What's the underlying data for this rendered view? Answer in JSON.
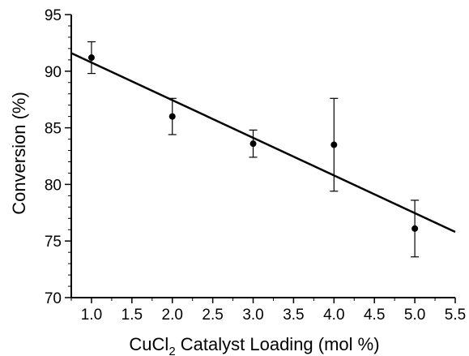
{
  "chart_data": {
    "type": "scatter",
    "xlabel": "CuCl",
    "xlabel_subscript": "2",
    "xlabel_rest": " Catalyst Loading (mol %)",
    "ylabel": "Conversion (%)",
    "xlim": [
      0.75,
      5.5
    ],
    "ylim": [
      70,
      95
    ],
    "x_ticks": [
      "1.0",
      "1.5",
      "2.0",
      "2.5",
      "3.0",
      "3.5",
      "4.0",
      "4.5",
      "5.0",
      "5.5"
    ],
    "x_tick_values": [
      1.0,
      1.5,
      2.0,
      2.5,
      3.0,
      3.5,
      4.0,
      4.5,
      5.0,
      5.5
    ],
    "y_ticks": [
      "70",
      "75",
      "80",
      "85",
      "90",
      "95"
    ],
    "y_tick_values": [
      70,
      75,
      80,
      85,
      90,
      95
    ],
    "grid": false,
    "series": [
      {
        "points": [
          {
            "x": 1.0,
            "y": 91.2,
            "err_low": 89.8,
            "err_high": 92.6
          },
          {
            "x": 2.0,
            "y": 86.0,
            "err_low": 84.4,
            "err_high": 87.6
          },
          {
            "x": 3.0,
            "y": 83.6,
            "err_low": 82.4,
            "err_high": 84.8
          },
          {
            "x": 4.0,
            "y": 83.5,
            "err_low": 79.4,
            "err_high": 87.6
          },
          {
            "x": 5.0,
            "y": 76.1,
            "err_low": 73.6,
            "err_high": 78.6
          }
        ]
      }
    ],
    "fit_line": {
      "x": [
        0.75,
        5.5
      ],
      "y": [
        91.6,
        75.8
      ]
    },
    "marker_color": "#000000",
    "line_color": "#000000"
  }
}
